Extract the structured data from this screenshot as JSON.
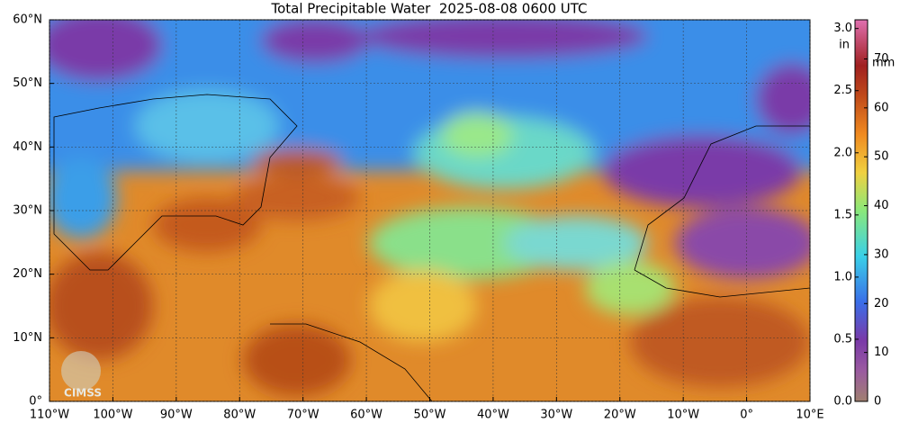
{
  "chart_data": {
    "type": "map",
    "title": "Total Precipitable Water  2025-08-08 0600 UTC",
    "logo": "CIMSS",
    "xlim": [
      -110,
      10
    ],
    "ylim": [
      0,
      60
    ],
    "xticks": [
      {
        "value": -110,
        "label": "110°W"
      },
      {
        "value": -100,
        "label": "100°W"
      },
      {
        "value": -90,
        "label": "90°W"
      },
      {
        "value": -80,
        "label": "80°W"
      },
      {
        "value": -70,
        "label": "70°W"
      },
      {
        "value": -60,
        "label": "60°W"
      },
      {
        "value": -50,
        "label": "50°W"
      },
      {
        "value": -40,
        "label": "40°W"
      },
      {
        "value": -30,
        "label": "30°W"
      },
      {
        "value": -20,
        "label": "20°W"
      },
      {
        "value": -10,
        "label": "10°W"
      },
      {
        "value": 0,
        "label": "0°"
      },
      {
        "value": 10,
        "label": "10°E"
      }
    ],
    "yticks": [
      {
        "value": 0,
        "label": "0°"
      },
      {
        "value": 10,
        "label": "10°N"
      },
      {
        "value": 20,
        "label": "20°N"
      },
      {
        "value": 30,
        "label": "30°N"
      },
      {
        "value": 40,
        "label": "40°N"
      },
      {
        "value": 50,
        "label": "50°N"
      },
      {
        "value": 60,
        "label": "60°N"
      }
    ],
    "grid": true,
    "colorbar": {
      "label_left": "in",
      "label_right": "mm",
      "ylim": [
        0,
        3.07
      ],
      "yticks": [
        {
          "value": 0,
          "label": "0.0"
        },
        {
          "value": 0.5,
          "label": "0.5"
        },
        {
          "value": 1,
          "label": "1.0"
        },
        {
          "value": 1.5,
          "label": "1.5"
        },
        {
          "value": 2,
          "label": "2.0"
        },
        {
          "value": 2.5,
          "label": "2.5"
        },
        {
          "value": 3,
          "label": "3.0"
        }
      ],
      "y2lim": [
        0,
        78
      ],
      "y2ticks": [
        0,
        10,
        20,
        30,
        40,
        50,
        60,
        70
      ]
    }
  }
}
